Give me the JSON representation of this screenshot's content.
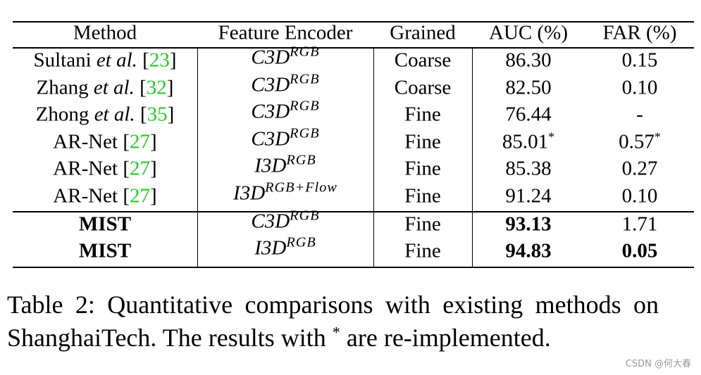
{
  "table": {
    "header": [
      "Method",
      "Feature Encoder",
      "Grained",
      "AUC (%)",
      "FAR (%)"
    ],
    "rows": [
      {
        "method": [
          {
            "text": "Sultani "
          },
          {
            "text": "et al.",
            "style": "italic"
          },
          {
            "text": " ["
          },
          {
            "text": "23",
            "style": "cite"
          },
          {
            "text": "]"
          }
        ],
        "encoder": {
          "base": "C3D",
          "sup": "RGB"
        },
        "grained": "Coarse",
        "auc": {
          "text": "86.30"
        },
        "far": {
          "text": "0.15"
        }
      },
      {
        "method": [
          {
            "text": "Zhang "
          },
          {
            "text": "et al.",
            "style": "italic"
          },
          {
            "text": " ["
          },
          {
            "text": "32",
            "style": "cite"
          },
          {
            "text": "]"
          }
        ],
        "encoder": {
          "base": "C3D",
          "sup": "RGB"
        },
        "grained": "Coarse",
        "auc": {
          "text": "82.50"
        },
        "far": {
          "text": "0.10"
        }
      },
      {
        "method": [
          {
            "text": "Zhong "
          },
          {
            "text": "et al.",
            "style": "italic"
          },
          {
            "text": " ["
          },
          {
            "text": "35",
            "style": "cite"
          },
          {
            "text": "]"
          }
        ],
        "encoder": {
          "base": "C3D",
          "sup": "RGB"
        },
        "grained": "Fine",
        "auc": {
          "text": "76.44"
        },
        "far": {
          "text": "-"
        }
      },
      {
        "method": [
          {
            "text": "AR-Net ["
          },
          {
            "text": "27",
            "style": "cite"
          },
          {
            "text": "]"
          }
        ],
        "encoder": {
          "base": "C3D",
          "sup": "RGB"
        },
        "grained": "Fine",
        "auc": {
          "text": "85.01",
          "note": "*"
        },
        "far": {
          "text": "0.57",
          "note": "*"
        }
      },
      {
        "method": [
          {
            "text": "AR-Net ["
          },
          {
            "text": "27",
            "style": "cite"
          },
          {
            "text": "]"
          }
        ],
        "encoder": {
          "base": "I3D",
          "sup": "RGB"
        },
        "grained": "Fine",
        "auc": {
          "text": "85.38"
        },
        "far": {
          "text": "0.27"
        }
      },
      {
        "method": [
          {
            "text": "AR-Net ["
          },
          {
            "text": "27",
            "style": "cite"
          },
          {
            "text": "]"
          }
        ],
        "encoder": {
          "base": "I3D",
          "sup": "RGB+Flow"
        },
        "grained": "Fine",
        "auc": {
          "text": "91.24"
        },
        "far": {
          "text": "0.10"
        }
      },
      {
        "method": [
          {
            "text": "MIST",
            "style": "bold"
          }
        ],
        "encoder": {
          "base": "C3D",
          "sup": "RGB"
        },
        "grained": "Fine",
        "auc": {
          "text": "93.13",
          "bold": true
        },
        "far": {
          "text": "1.71"
        }
      },
      {
        "method": [
          {
            "text": "MIST",
            "style": "bold"
          }
        ],
        "encoder": {
          "base": "I3D",
          "sup": "RGB"
        },
        "grained": "Fine",
        "auc": {
          "text": "94.83",
          "bold": true
        },
        "far": {
          "text": "0.05",
          "bold": true
        }
      }
    ]
  },
  "caption": [
    {
      "text": "Table 2:  Quantitative comparisons with existing methods on ShanghaiTech. The results with "
    },
    {
      "text": "*",
      "style": "sup"
    },
    {
      "text": " are re-implemented."
    }
  ],
  "watermark": "CSDN @何大春"
}
